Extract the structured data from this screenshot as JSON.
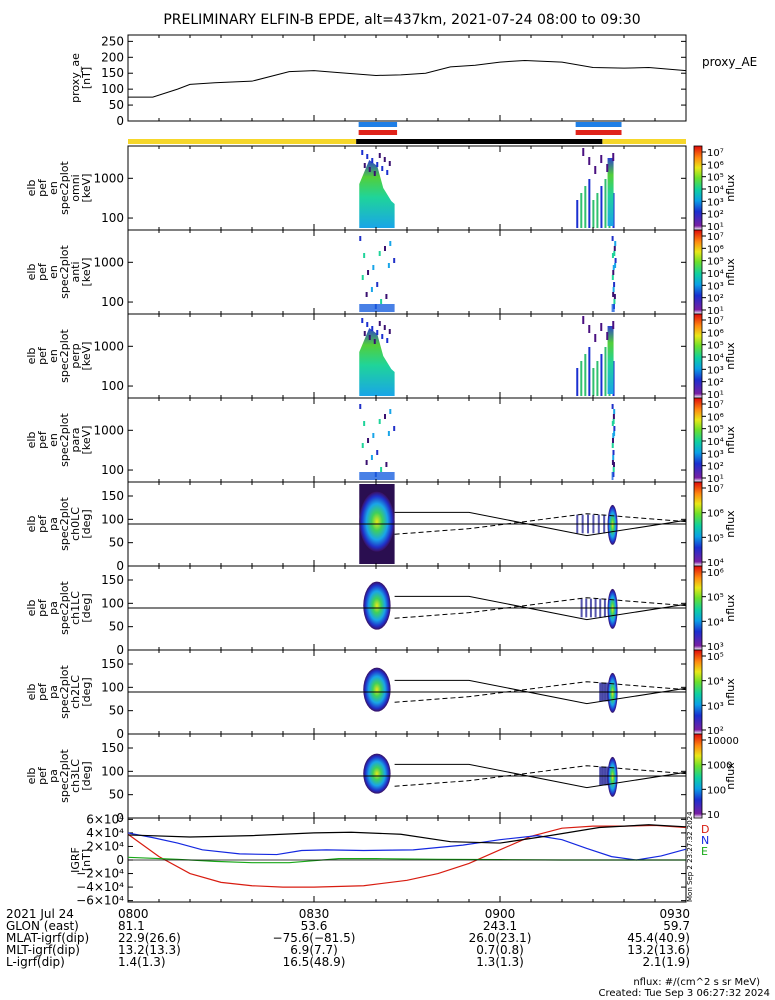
{
  "title": "PRELIMINARY ELFIN-B EPDE, alt=437km, 2021-07-24 08:00 to 09:30",
  "colors": {
    "gold": "#f6d72a",
    "blue_bar": "#1f7fe6",
    "red_bar": "#e0231a",
    "trace_n": "#1428e0",
    "trace_d": "#d81c10",
    "trace_e": "#18a818"
  },
  "chart_data": [
    {
      "type": "line",
      "name": "proxy_ae",
      "ylabel": "proxy_ae\n[nT]",
      "legend": "proxy_AE",
      "ylim": [
        0,
        270
      ],
      "yticks": [
        "250",
        "200",
        "150",
        "100",
        "50",
        "0"
      ],
      "ytick_values": [
        250,
        200,
        150,
        100,
        50,
        0
      ],
      "series": [
        {
          "x": [
            0,
            4,
            8,
            10,
            14,
            20,
            26,
            30,
            34,
            40,
            44,
            48,
            52,
            56,
            60,
            64,
            70,
            75,
            80,
            84,
            90
          ],
          "values": [
            75,
            75,
            100,
            115,
            120,
            125,
            155,
            158,
            152,
            143,
            145,
            150,
            170,
            175,
            185,
            190,
            185,
            168,
            166,
            168,
            158
          ]
        }
      ]
    },
    {
      "type": "bar",
      "name": "orbit_bars",
      "segments": {
        "gold": [
          [
            0,
            36.8
          ],
          [
            76.5,
            90
          ]
        ],
        "black": [
          [
            36.8,
            76.5
          ]
        ],
        "blue": [
          [
            37.2,
            43.4
          ],
          [
            72.2,
            79.6
          ]
        ],
        "red": [
          [
            37.2,
            43.4
          ],
          [
            72.2,
            79.6
          ]
        ]
      }
    },
    {
      "type": "heatmap",
      "name": "omni",
      "ylabel": "elb\npef\nen\nspec2plot\nomni\n[keV]",
      "yscale": "log",
      "ylim": [
        50,
        6500
      ],
      "yticks": [
        "1000",
        "100"
      ],
      "ytick_values": [
        1000,
        100
      ],
      "colorbar": {
        "ticks": [
          "10^7",
          "10^6",
          "10^5",
          "10^4",
          "10^3",
          "10^2",
          "10^1"
        ],
        "label": "nflux"
      },
      "bursts": [
        [
          37.3,
          43.0
        ],
        [
          72.3,
          78.8
        ]
      ]
    },
    {
      "type": "heatmap",
      "name": "anti",
      "ylabel": "elb\npef\nen\nspec2plot\nanti\n[keV]",
      "yscale": "log",
      "ylim": [
        50,
        6500
      ],
      "yticks": [
        "1000",
        "100"
      ],
      "ytick_values": [
        1000,
        100
      ],
      "colorbar": {
        "ticks": [
          "10^7",
          "10^6",
          "10^5",
          "10^4",
          "10^3",
          "10^2",
          "10^1"
        ],
        "label": "nflux"
      },
      "bursts": [
        [
          37.3,
          43.0
        ],
        [
          78.0,
          78.5
        ]
      ]
    },
    {
      "type": "heatmap",
      "name": "perp",
      "ylabel": "elb\npef\nen\nspec2plot\nperp\n[keV]",
      "yscale": "log",
      "ylim": [
        50,
        6500
      ],
      "yticks": [
        "1000",
        "100"
      ],
      "ytick_values": [
        1000,
        100
      ],
      "colorbar": {
        "ticks": [
          "10^7",
          "10^6",
          "10^5",
          "10^4",
          "10^3",
          "10^2",
          "10^1"
        ],
        "label": "nflux"
      },
      "bursts": [
        [
          37.3,
          43.0
        ],
        [
          72.3,
          78.8
        ]
      ]
    },
    {
      "type": "heatmap",
      "name": "para",
      "ylabel": "elb\npef\nen\nspec2plot\npara\n[keV]",
      "yscale": "log",
      "ylim": [
        50,
        6500
      ],
      "yticks": [
        "1000",
        "100"
      ],
      "ytick_values": [
        1000,
        100
      ],
      "colorbar": {
        "ticks": [
          "10^7",
          "10^6",
          "10^5",
          "10^4",
          "10^3",
          "10^2",
          "10^1"
        ],
        "label": "nflux"
      },
      "bursts": [
        [
          37.3,
          43.0
        ],
        [
          78.0,
          78.3
        ]
      ]
    },
    {
      "type": "heatmap",
      "name": "ch0LC",
      "ylabel": "elb\npef\npa\nspec2plot\nch0LC\n[deg]",
      "ylim": [
        0,
        180
      ],
      "yticks": [
        "150",
        "100",
        "50",
        "0"
      ],
      "ytick_values": [
        150,
        100,
        50,
        0
      ],
      "colorbar": {
        "ticks": [
          "10^7",
          "10^6",
          "10^5",
          "10^4"
        ],
        "label": "nflux"
      },
      "bursts": [
        [
          37.3,
          43.0
        ],
        [
          72.3,
          78.8
        ]
      ]
    },
    {
      "type": "heatmap",
      "name": "ch1LC",
      "ylabel": "elb\npef\npa\nspec2plot\nch1LC\n[deg]",
      "ylim": [
        0,
        180
      ],
      "yticks": [
        "150",
        "100",
        "50",
        "0"
      ],
      "ytick_values": [
        150,
        100,
        50,
        0
      ],
      "colorbar": {
        "ticks": [
          "10^6",
          "10^5",
          "10^4",
          "10^3"
        ],
        "label": "nflux"
      },
      "bursts": [
        [
          37.3,
          43.0
        ],
        [
          73.0,
          78.8
        ]
      ]
    },
    {
      "type": "heatmap",
      "name": "ch2LC",
      "ylabel": "elb\npef\npa\nspec2plot\nch2LC\n[deg]",
      "ylim": [
        0,
        180
      ],
      "yticks": [
        "150",
        "100",
        "50",
        "0"
      ],
      "ytick_values": [
        150,
        100,
        50,
        0
      ],
      "colorbar": {
        "ticks": [
          "10^5",
          "10^4",
          "10^3",
          "10^2"
        ],
        "label": "nflux"
      },
      "bursts": [
        [
          37.3,
          43.0
        ],
        [
          76.0,
          78.8
        ]
      ]
    },
    {
      "type": "heatmap",
      "name": "ch3LC",
      "ylabel": "elb\npef\npa\nspec2plot\nch3LC\n[deg]",
      "ylim": [
        0,
        180
      ],
      "yticks": [
        "150",
        "100",
        "50",
        "0"
      ],
      "ytick_values": [
        150,
        100,
        50,
        0
      ],
      "colorbar": {
        "ticks": [
          "10000",
          "1000",
          "100",
          "10"
        ],
        "label": "nflux"
      },
      "bursts": [
        [
          37.3,
          43.0
        ],
        [
          76.0,
          78.8
        ]
      ]
    },
    {
      "type": "line",
      "name": "igrf",
      "ylabel": "IGRF\n[nT]",
      "ylim": [
        -62000,
        62000
      ],
      "yticks": [
        "6×10⁴",
        "4×10⁴",
        "2×10⁴",
        "0",
        "−2×10⁴",
        "−4×10⁴",
        "−6×10⁴"
      ],
      "ytick_values": [
        60000,
        40000,
        20000,
        0,
        -20000,
        -40000,
        -60000
      ],
      "legend": [
        "D",
        "N",
        "E"
      ],
      "series": [
        {
          "name": "D",
          "x": [
            0,
            5,
            10,
            15,
            20,
            25,
            30,
            38,
            45,
            50,
            55,
            60,
            65,
            70,
            75,
            80,
            85,
            90
          ],
          "values": [
            38000,
            5000,
            -20000,
            -33000,
            -38000,
            -40000,
            -40000,
            -38000,
            -30000,
            -20000,
            -5000,
            15000,
            35000,
            47000,
            50000,
            50000,
            51000,
            48000
          ]
        },
        {
          "name": "N",
          "x": [
            0,
            4,
            8,
            12,
            18,
            24,
            28,
            32,
            38,
            46,
            54,
            60,
            66,
            70,
            74,
            78,
            82,
            86,
            90
          ],
          "values": [
            40000,
            33000,
            25000,
            15000,
            9000,
            8000,
            14000,
            15000,
            14000,
            15000,
            22000,
            30000,
            36000,
            30000,
            17000,
            5000,
            0,
            6000,
            16000
          ]
        },
        {
          "name": "E",
          "x": [
            0,
            8,
            14,
            20,
            26,
            30,
            34,
            40,
            50,
            60,
            70,
            80,
            90
          ],
          "values": [
            4000,
            1000,
            -2000,
            -4000,
            -4000,
            -1000,
            2000,
            2000,
            1000,
            500,
            0,
            0,
            0
          ]
        },
        {
          "name": "total",
          "x": [
            0,
            10,
            20,
            30,
            36,
            44,
            52,
            60,
            68,
            76,
            84,
            90
          ],
          "values": [
            37000,
            34000,
            36000,
            40000,
            41000,
            38000,
            27000,
            25000,
            36000,
            48000,
            52000,
            49000
          ]
        }
      ]
    }
  ],
  "side_text": {
    "igrf_date": "Mon Sep  2 23:27:32 2024"
  },
  "axis": {
    "date": "2021 Jul 24",
    "rows": [
      {
        "label": "GLON (east)"
      },
      {
        "label": "MLAT-igrf(dip)"
      },
      {
        "label": "MLT-igrf(dip)"
      },
      {
        "label": "L-igrf(dip)"
      }
    ],
    "ticks": [
      {
        "t": 0,
        "time": "0800",
        "vals": [
          "81.1",
          "22.9(26.6)",
          "13.2(13.3)",
          "1.4(1.3)"
        ]
      },
      {
        "t": 30,
        "time": "0830",
        "vals": [
          "53.6",
          "−75.6(−81.5)",
          "6.9(7.7)",
          "16.5(48.9)"
        ]
      },
      {
        "t": 60,
        "time": "0900",
        "vals": [
          "243.1",
          "26.0(23.1)",
          "0.7(0.8)",
          "1.3(1.3)"
        ]
      },
      {
        "t": 90,
        "time": "0930",
        "vals": [
          "59.7",
          "45.4(40.9)",
          "13.2(13.6)",
          "2.1(1.9)"
        ]
      }
    ]
  },
  "footer": {
    "units": "nflux: #/(cm^2 s sr MeV)",
    "created": "Created: Tue Sep  3 06:27:32 2024"
  }
}
